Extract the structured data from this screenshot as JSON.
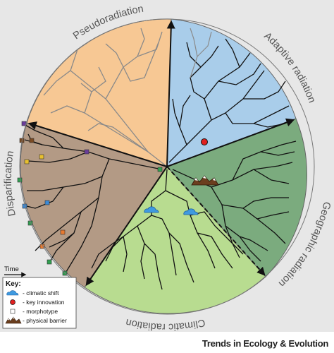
{
  "segments": {
    "pseudoradiation": "Pseudoradiation",
    "adaptive": "Adaptive radiation",
    "geographic": "Geographic radiation",
    "climatic": "Climatic radiation",
    "disparification": "Disparification"
  },
  "colors": {
    "pseudoradiation": "#f7c894",
    "adaptive": "#a9cdea",
    "geographic": "#7bab7e",
    "climatic": "#b8dc90",
    "disparification": "#b39a85",
    "background": "#e7e7e7"
  },
  "axis": {
    "time_label": "Time"
  },
  "key": {
    "title": "Key:",
    "items": [
      {
        "icon": "cloud-icon",
        "label": "- climatic shift"
      },
      {
        "icon": "red-circle-icon",
        "label": "- key innovation"
      },
      {
        "icon": "square-icon",
        "label": "- morphotype"
      },
      {
        "icon": "mountain-icon",
        "label": "- physical barrier"
      }
    ]
  },
  "footer": {
    "journal": "Trends in Ecology & Evolution"
  }
}
